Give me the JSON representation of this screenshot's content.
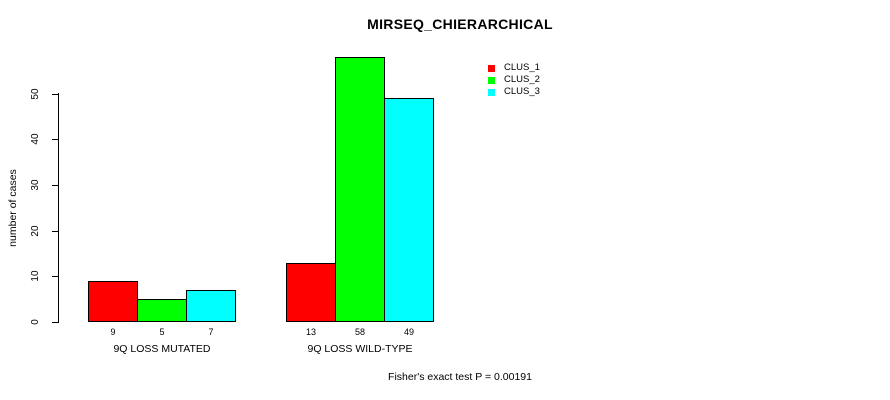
{
  "chart_data": {
    "type": "bar",
    "title": "MIRSEQ_CHIERARCHICAL",
    "ylabel": "number of cases",
    "xlabel": "",
    "annotation": "Fisher's exact test P = 0.00191",
    "categories": [
      "9Q LOSS MUTATED",
      "9Q LOSS WILD-TYPE"
    ],
    "series": [
      {
        "name": "CLUS_1",
        "color": "#ff0000",
        "values": [
          9,
          13
        ]
      },
      {
        "name": "CLUS_2",
        "color": "#00ff00",
        "values": [
          5,
          58
        ]
      },
      {
        "name": "CLUS_3",
        "color": "#00ffff",
        "values": [
          7,
          49
        ]
      }
    ],
    "yticks": [
      0,
      10,
      20,
      30,
      40,
      50
    ],
    "ylim": [
      0,
      50
    ],
    "bar_value_labels_shown": true,
    "grid": false,
    "legend_position": "top-right-inside",
    "bar_border_color": "#000000",
    "background_color": "#ffffff"
  }
}
